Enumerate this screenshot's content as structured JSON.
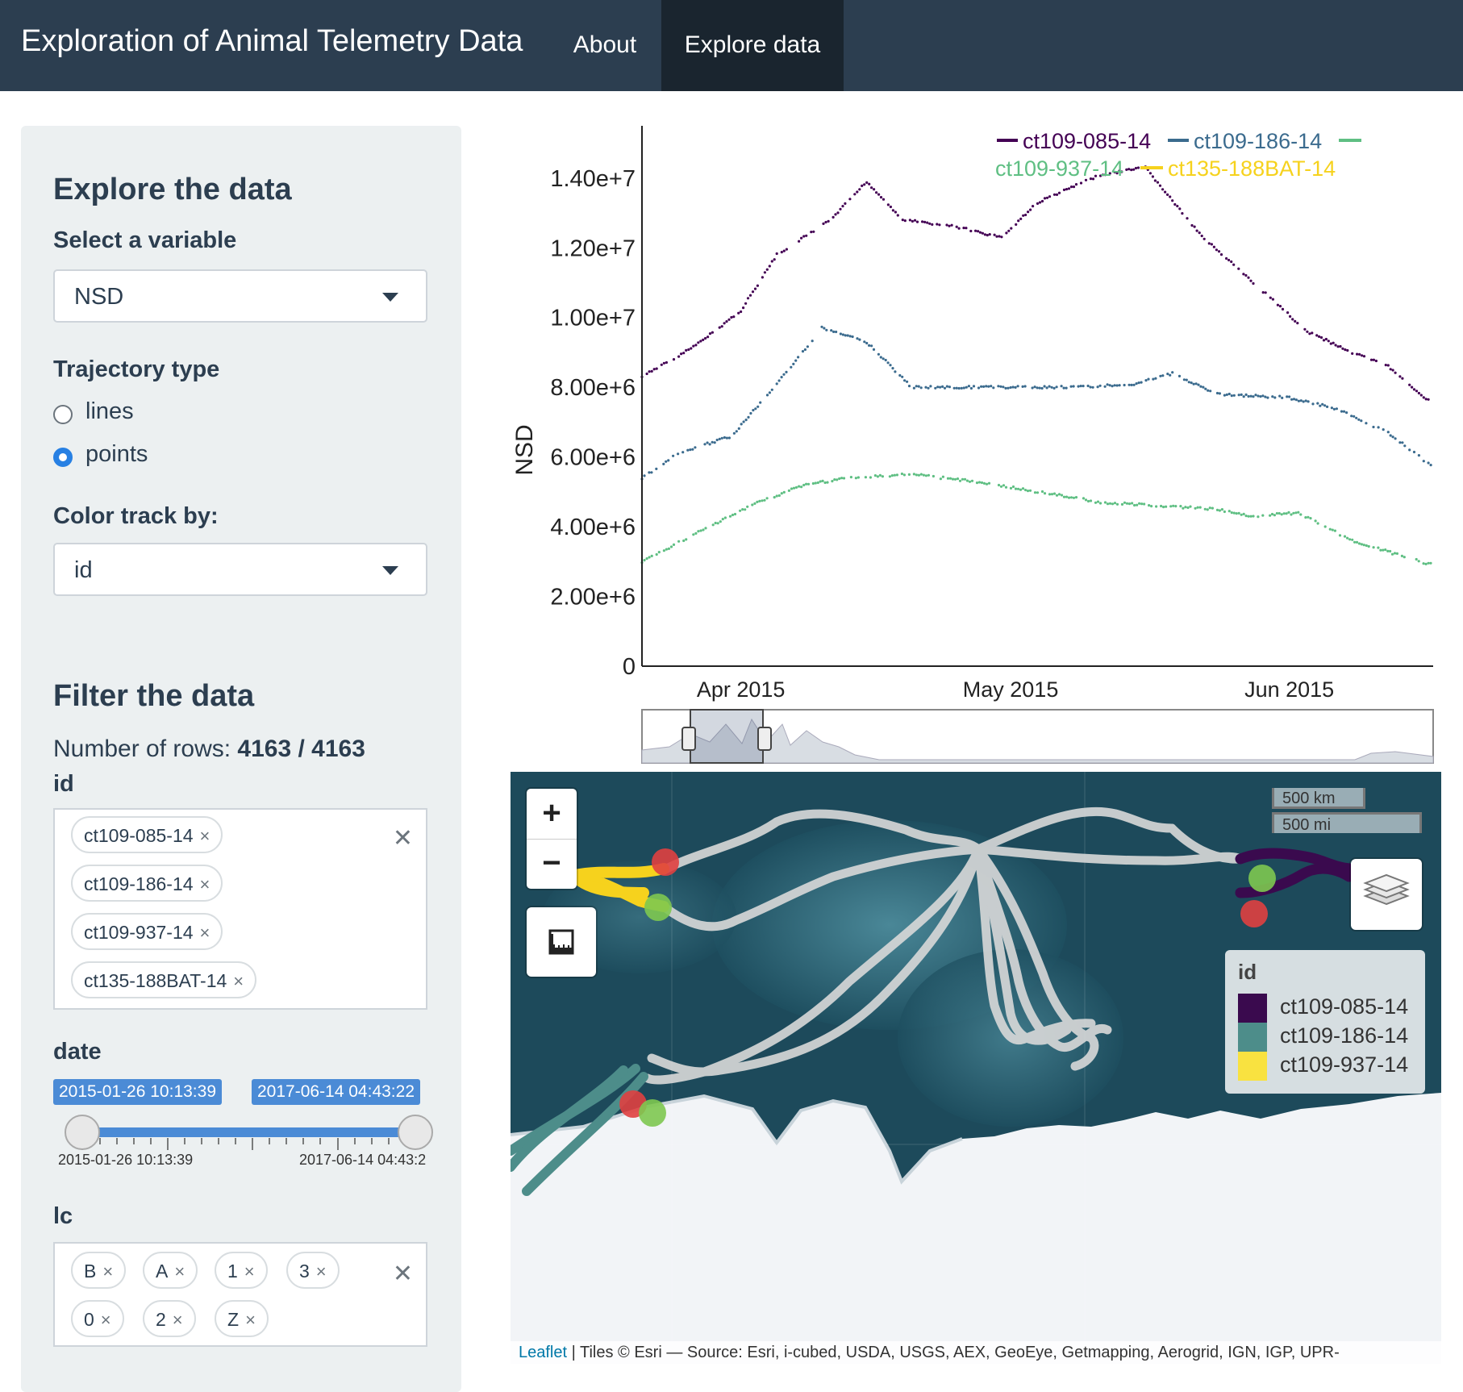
{
  "navbar": {
    "brand": "Exploration of Animal Telemetry Data",
    "tabs": [
      {
        "label": "About",
        "active": false
      },
      {
        "label": "Explore data",
        "active": true
      }
    ],
    "colors": {
      "bg": "#2c3e50",
      "active_bg": "#1a252f"
    }
  },
  "sidebar": {
    "explore_title": "Explore the data",
    "variable_label": "Select a variable",
    "variable_value": "NSD",
    "trajectory_label": "Trajectory type",
    "trajectory_options": [
      {
        "label": "lines",
        "checked": false
      },
      {
        "label": "points",
        "checked": true
      }
    ],
    "color_label": "Color track by:",
    "color_value": "id",
    "filter_title": "Filter the data",
    "rows_prefix": "Number of rows: ",
    "rows_value": "4163 / 4163",
    "id_label": "id",
    "id_tags": [
      "ct109-085-14",
      "ct109-186-14",
      "ct109-937-14",
      "ct135-188BAT-14"
    ],
    "date_label": "date",
    "date_from": "2015-01-26 10:13:39",
    "date_to": "2017-06-14 04:43:22",
    "date_min_label": "2015-01-26 10:13:39",
    "date_max_label": "2017-06-14 04:43:2",
    "lc_label": "lc",
    "lc_tags": [
      "B",
      "A",
      "1",
      "3",
      "0",
      "2",
      "Z"
    ],
    "remove_glyph": "×",
    "clear_glyph": "✕"
  },
  "chart_data": {
    "type": "scatter",
    "ylabel": "NSD",
    "yticks": [
      "0",
      "2.00e+6",
      "4.00e+6",
      "6.00e+6",
      "8.00e+6",
      "1.00e+7",
      "1.20e+7",
      "1.40e+7"
    ],
    "ylim": [
      0,
      15500000
    ],
    "xticks": [
      "Apr 2015",
      "May 2015",
      "Jun 2015"
    ],
    "xlim": [
      "2015-03-21",
      "2015-06-17"
    ],
    "legend": {
      "placement": "top-right"
    },
    "series": [
      {
        "name": "ct109-085-14",
        "color": "#440154",
        "x": [
          "2015-03-21",
          "2015-03-27",
          "2015-04-01",
          "2015-04-05",
          "2015-04-11",
          "2015-04-15",
          "2015-04-19",
          "2015-04-25",
          "2015-04-30",
          "2015-05-04",
          "2015-05-11",
          "2015-05-16",
          "2015-05-22",
          "2015-05-28",
          "2015-06-03",
          "2015-06-08",
          "2015-06-12",
          "2015-06-17"
        ],
        "y": [
          8300000,
          9200000,
          10200000,
          11800000,
          12800000,
          13900000,
          12800000,
          12600000,
          12300000,
          13300000,
          14100000,
          14300000,
          12400000,
          11000000,
          9600000,
          9000000,
          8600000,
          7500000
        ]
      },
      {
        "name": "ct109-186-14",
        "color": "#3b6b8e",
        "x": [
          "2015-03-21",
          "2015-03-25",
          "2015-03-31",
          "2015-04-05",
          "2015-04-10",
          "2015-04-15",
          "2015-04-20",
          "2015-04-25",
          "2015-05-01",
          "2015-05-08",
          "2015-05-15",
          "2015-05-19",
          "2015-05-24",
          "2015-06-01",
          "2015-06-06",
          "2015-06-12",
          "2015-06-17"
        ],
        "y": [
          5400000,
          6100000,
          6600000,
          8100000,
          9700000,
          9300000,
          8000000,
          8000000,
          8000000,
          8000000,
          8100000,
          8400000,
          7800000,
          7700000,
          7400000,
          6700000,
          5700000
        ]
      },
      {
        "name": "ct109-937-14",
        "color": "#5fbf83",
        "x": [
          "2015-03-21",
          "2015-03-27",
          "2015-04-02",
          "2015-04-08",
          "2015-04-13",
          "2015-04-20",
          "2015-04-27",
          "2015-05-04",
          "2015-05-11",
          "2015-05-18",
          "2015-05-24",
          "2015-05-28",
          "2015-06-02",
          "2015-06-08",
          "2015-06-13",
          "2015-06-17"
        ],
        "y": [
          3000000,
          3800000,
          4600000,
          5200000,
          5400000,
          5500000,
          5300000,
          5000000,
          4700000,
          4600000,
          4500000,
          4300000,
          4400000,
          3600000,
          3200000,
          2900000
        ]
      },
      {
        "name": "ct135-188BAT-14",
        "color": "#f6d21d",
        "x": [],
        "y": []
      }
    ]
  },
  "map": {
    "zoom_in": "+",
    "zoom_out": "−",
    "scale_km": "500 km",
    "scale_mi": "500 mi",
    "legend_title": "id",
    "legend_items": [
      {
        "label": "ct109-085-14",
        "color": "#3a0a4e"
      },
      {
        "label": "ct109-186-14",
        "color": "#4d8d8a"
      },
      {
        "label": "ct109-937-14",
        "color": "#f9e240"
      }
    ],
    "attribution_link": "Leaflet",
    "attribution_text": " | Tiles © Esri — Source: Esri, i-cubed, USDA, USGS, AEX, GeoEye, Getmapping, Aerogrid, IGN, IGP, UPR-"
  }
}
